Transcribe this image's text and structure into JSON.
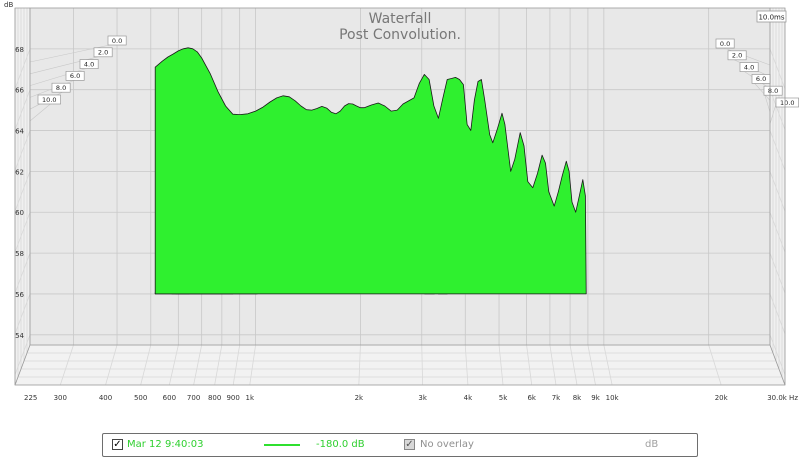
{
  "chart_data": {
    "type": "area",
    "title": "Waterfall",
    "subtitle": "Post Convolution.",
    "ylabel": "dB",
    "xlabel": "",
    "x_unit": "Hz",
    "x_scale": "log",
    "xlim": [
      225,
      30000
    ],
    "ylim": [
      53.5,
      70
    ],
    "x_ticks": [
      {
        "v": 225,
        "label": "225"
      },
      {
        "v": 300,
        "label": "300"
      },
      {
        "v": 400,
        "label": "400"
      },
      {
        "v": 500,
        "label": "500"
      },
      {
        "v": 600,
        "label": "600"
      },
      {
        "v": 700,
        "label": "700"
      },
      {
        "v": 800,
        "label": "800"
      },
      {
        "v": 900,
        "label": "900"
      },
      {
        "v": 1000,
        "label": "1k"
      },
      {
        "v": 2000,
        "label": "2k"
      },
      {
        "v": 3000,
        "label": "3k"
      },
      {
        "v": 4000,
        "label": "4k"
      },
      {
        "v": 5000,
        "label": "5k"
      },
      {
        "v": 6000,
        "label": "6k"
      },
      {
        "v": 7000,
        "label": "7k"
      },
      {
        "v": 8000,
        "label": "8k"
      },
      {
        "v": 9000,
        "label": "9k"
      },
      {
        "v": 10000,
        "label": "10k"
      },
      {
        "v": 20000,
        "label": "20k"
      },
      {
        "v": 30000,
        "label": "30.0k Hz"
      }
    ],
    "y_ticks": [
      54,
      56,
      58,
      60,
      62,
      64,
      66,
      68
    ],
    "time_axis_unit": "ms",
    "time_axis_max": 10.0,
    "time_ticks_left": [
      "0.0",
      "2.0",
      "4.0",
      "6.0",
      "8.0",
      "10.0"
    ],
    "time_ticks_right": [
      "0.0",
      "2.0",
      "4.0",
      "6.0",
      "8.0",
      "10.0"
    ],
    "time_axis_label": "10.0ms",
    "grid": true,
    "series": [
      {
        "time_ms": 0.0,
        "fill": "#2ff02f",
        "points": [
          [
            515,
            56
          ],
          [
            515,
            67.1
          ],
          [
            540,
            67.4
          ],
          [
            560,
            67.6
          ],
          [
            580,
            67.75
          ],
          [
            600,
            67.9
          ],
          [
            620,
            68.0
          ],
          [
            640,
            68.05
          ],
          [
            660,
            68.0
          ],
          [
            680,
            67.85
          ],
          [
            700,
            67.55
          ],
          [
            740,
            66.8
          ],
          [
            780,
            65.9
          ],
          [
            820,
            65.2
          ],
          [
            860,
            64.8
          ],
          [
            900,
            64.78
          ],
          [
            950,
            64.82
          ],
          [
            1000,
            64.95
          ],
          [
            1050,
            65.15
          ],
          [
            1100,
            65.4
          ],
          [
            1150,
            65.6
          ],
          [
            1200,
            65.7
          ],
          [
            1250,
            65.65
          ],
          [
            1300,
            65.45
          ],
          [
            1350,
            65.2
          ],
          [
            1400,
            65.02
          ],
          [
            1450,
            65.0
          ],
          [
            1500,
            65.08
          ],
          [
            1550,
            65.18
          ],
          [
            1600,
            65.1
          ],
          [
            1650,
            64.9
          ],
          [
            1700,
            64.82
          ],
          [
            1750,
            64.95
          ],
          [
            1800,
            65.2
          ],
          [
            1850,
            65.32
          ],
          [
            1900,
            65.3
          ],
          [
            1950,
            65.2
          ],
          [
            2000,
            65.12
          ],
          [
            2050,
            65.12
          ],
          [
            2150,
            65.25
          ],
          [
            2250,
            65.35
          ],
          [
            2350,
            65.2
          ],
          [
            2450,
            64.95
          ],
          [
            2550,
            65.0
          ],
          [
            2650,
            65.3
          ],
          [
            2750,
            65.45
          ],
          [
            2850,
            65.6
          ],
          [
            2950,
            66.3
          ],
          [
            3050,
            66.75
          ],
          [
            3150,
            66.5
          ],
          [
            3250,
            65.2
          ],
          [
            3350,
            64.6
          ],
          [
            3450,
            65.6
          ],
          [
            3550,
            66.5
          ],
          [
            3650,
            66.55
          ],
          [
            3750,
            66.6
          ],
          [
            3850,
            66.5
          ],
          [
            3950,
            66.25
          ],
          [
            4050,
            64.3
          ],
          [
            4150,
            64.0
          ],
          [
            4250,
            65.5
          ],
          [
            4350,
            66.4
          ],
          [
            4450,
            66.5
          ],
          [
            4550,
            65.5
          ],
          [
            4700,
            63.8
          ],
          [
            4800,
            63.4
          ],
          [
            4950,
            64.1
          ],
          [
            5100,
            64.85
          ],
          [
            5200,
            64.3
          ],
          [
            5400,
            62.0
          ],
          [
            5550,
            62.6
          ],
          [
            5750,
            63.9
          ],
          [
            5900,
            63.25
          ],
          [
            6050,
            61.5
          ],
          [
            6250,
            61.2
          ],
          [
            6450,
            61.9
          ],
          [
            6650,
            62.8
          ],
          [
            6800,
            62.4
          ],
          [
            6950,
            61.0
          ],
          [
            7200,
            60.3
          ],
          [
            7400,
            61.0
          ],
          [
            7600,
            61.8
          ],
          [
            7800,
            62.5
          ],
          [
            7950,
            62.0
          ],
          [
            8100,
            60.5
          ],
          [
            8300,
            60.0
          ],
          [
            8500,
            60.8
          ],
          [
            8700,
            61.6
          ],
          [
            8850,
            60.8
          ],
          [
            8900,
            56
          ]
        ]
      },
      {
        "time_ms": 10.0,
        "fill": "#2ff02f",
        "points": [
          [
            515,
            56.0
          ],
          [
            525,
            57.5
          ],
          [
            550,
            58.1
          ],
          [
            580,
            58.4
          ],
          [
            620,
            58.5
          ],
          [
            660,
            58.55
          ],
          [
            700,
            58.7
          ],
          [
            730,
            59.0
          ],
          [
            760,
            59.2
          ],
          [
            790,
            59.15
          ],
          [
            820,
            58.7
          ],
          [
            860,
            57.8
          ],
          [
            900,
            57.0
          ],
          [
            940,
            56.6
          ],
          [
            980,
            56.3
          ],
          [
            1010,
            56.0
          ]
        ]
      },
      {
        "time_ms": 8.0,
        "fill": "#2ff02f",
        "points": [
          [
            590,
            56.0
          ],
          [
            600,
            57.3
          ],
          [
            620,
            57.6
          ],
          [
            650,
            57.8
          ],
          [
            680,
            57.85
          ],
          [
            710,
            57.9
          ],
          [
            730,
            57.95
          ],
          [
            750,
            57.85
          ],
          [
            780,
            57.0
          ],
          [
            810,
            56.5
          ],
          [
            840,
            56.2
          ],
          [
            860,
            56.0
          ]
        ]
      },
      {
        "time_ms": 6.0,
        "fill": "#2ff02f",
        "points": [
          [
            575,
            56.0
          ],
          [
            580,
            56.8
          ],
          [
            590,
            57.0
          ],
          [
            610,
            57.1
          ],
          [
            630,
            57.1
          ],
          [
            645,
            56.0
          ]
        ]
      },
      {
        "time_ms": 4.0,
        "fill": "#2ff02f",
        "points": [
          [
            3060,
            56.0
          ],
          [
            3120,
            56.3
          ],
          [
            3200,
            56.1
          ],
          [
            3260,
            56.0
          ]
        ]
      },
      {
        "time_ms": 2.0,
        "fill": "#2ff02f",
        "points": [
          [
            3350,
            56.0
          ],
          [
            3400,
            56.25
          ],
          [
            3450,
            56.35
          ],
          [
            3500,
            56.1
          ],
          [
            3550,
            56.0
          ]
        ]
      }
    ],
    "legend": {
      "placement": "bottom",
      "entries": [
        {
          "name": "Mar 12 9:40:03",
          "value": "-180.0 dB",
          "checked": true,
          "color": "#2fe02f"
        },
        {
          "name": "No overlay",
          "value": "dB",
          "checked": true,
          "color": "#909090"
        }
      ]
    }
  }
}
